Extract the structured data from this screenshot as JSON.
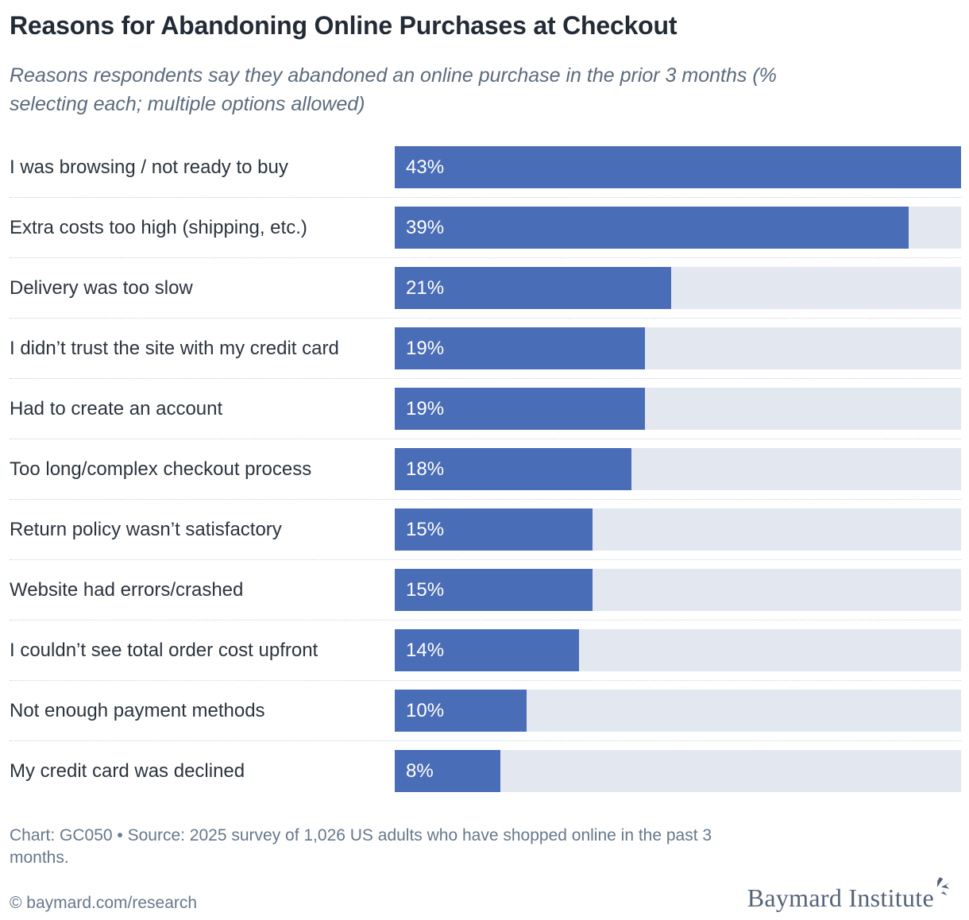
{
  "header": {
    "title": "Reasons for Abandoning Online Purchases at Checkout",
    "subtitle": "Reasons respondents say they abandoned an online purchase in the prior 3 months (% selecting each; multiple options allowed)"
  },
  "chart_data": {
    "type": "bar",
    "orientation": "horizontal",
    "title": "Reasons for Abandoning Online Purchases at Checkout",
    "subtitle": "Reasons respondents say they abandoned an online purchase in the prior 3 months (% selecting each; multiple options allowed)",
    "categories": [
      "I was browsing / not ready to buy",
      "Extra costs too high (shipping, etc.)",
      "Delivery was too slow",
      "I didn’t trust the site with my credit card",
      "Had to create an account",
      "Too long/complex checkout process",
      "Return policy wasn’t satisfactory",
      "Website had errors/crashed",
      "I couldn’t see total order cost upfront",
      "Not enough payment methods",
      "My credit card was declined"
    ],
    "values": [
      43,
      39,
      21,
      19,
      19,
      18,
      15,
      15,
      14,
      10,
      8
    ],
    "value_labels": [
      "43%",
      "39%",
      "21%",
      "19%",
      "19%",
      "18%",
      "15%",
      "15%",
      "14%",
      "10%",
      "8%"
    ],
    "xlabel": "",
    "ylabel": "",
    "xlim": [
      0,
      43
    ],
    "grid": false,
    "legend": false,
    "bar_color": "#4a6db8",
    "track_color": "#e3e7ef",
    "value_label_color": "#ffffff",
    "separator_style": "dotted"
  },
  "footer": {
    "credit": "Chart: GC050 • Source: 2025 survey of 1,026 US adults who have shopped online in the past 3 months.",
    "copyright": "© baymard.com/research",
    "logo_text": "Baymard Institute",
    "logo_icon": "sparkle-icon"
  }
}
